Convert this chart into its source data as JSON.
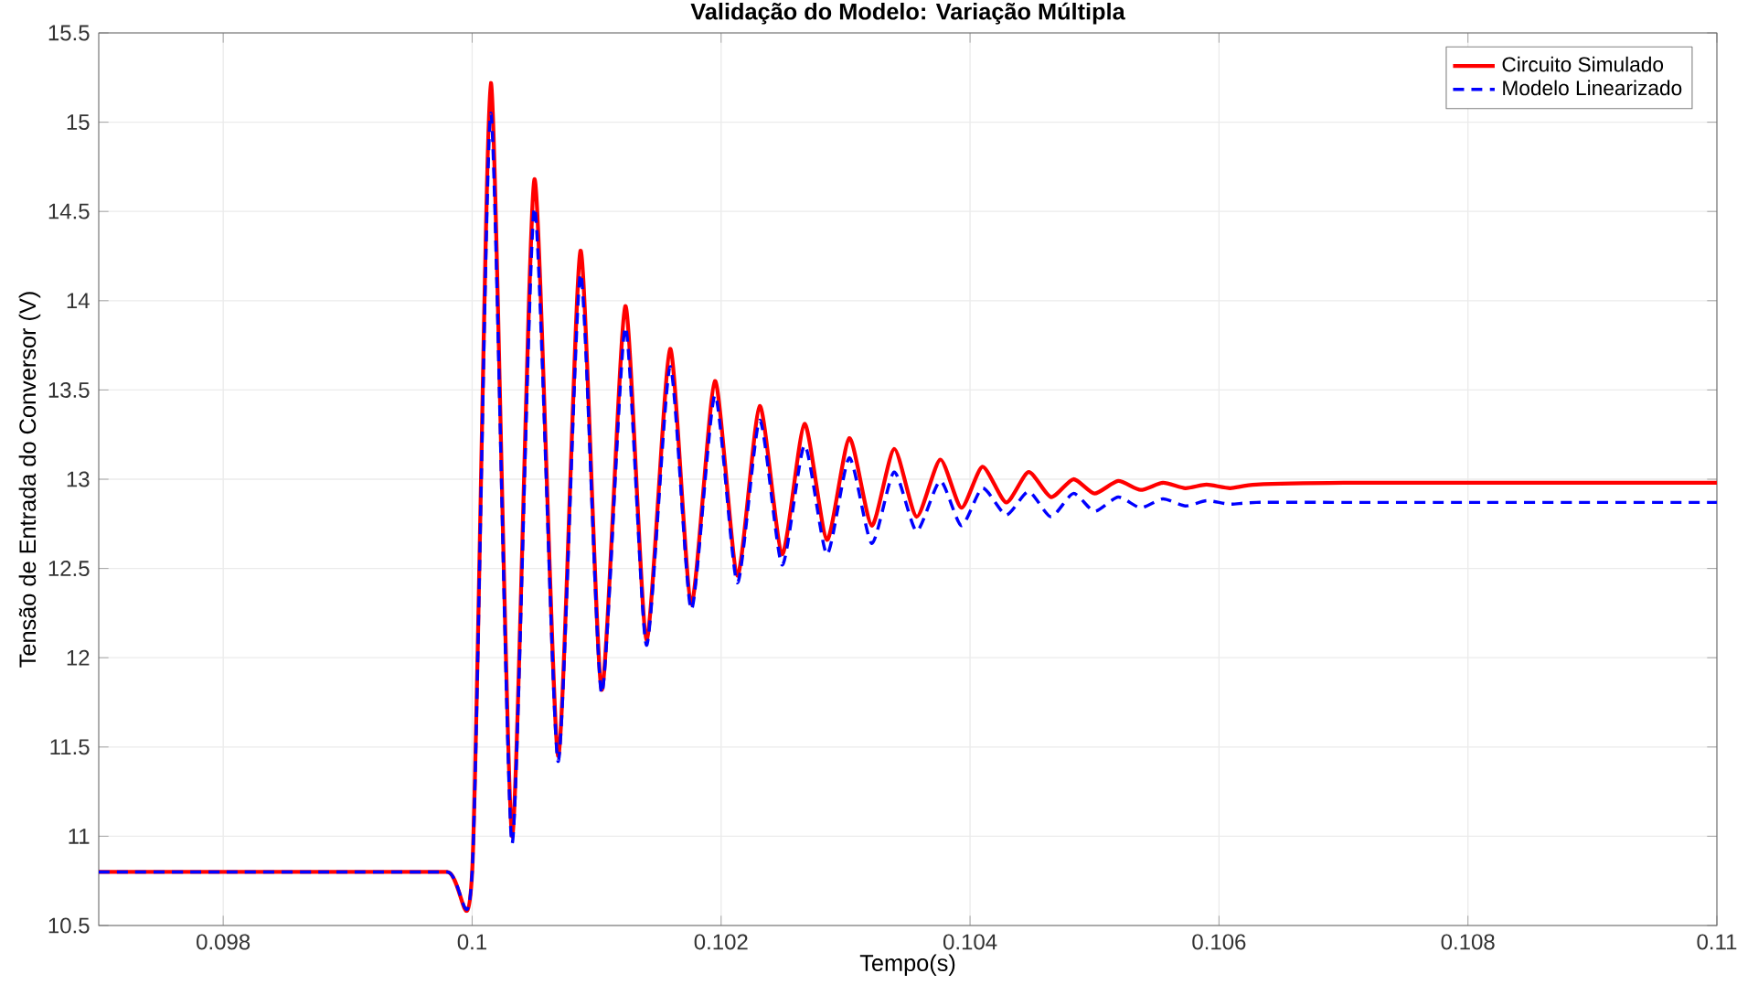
{
  "chart_data": {
    "type": "line",
    "title": "Validação do Modelo: Variação Múltipla",
    "xlabel": "Tempo(s)",
    "ylabel": "Tensão de Entrada do Conversor (V)",
    "x": [
      0.097,
      0.098,
      0.099,
      0.0998,
      0.1,
      0.10015,
      0.10032,
      0.1005,
      0.10069,
      0.10087,
      0.10104,
      0.10123,
      0.1014,
      0.10159,
      0.10176,
      0.10195,
      0.10213,
      0.10231,
      0.10249,
      0.10267,
      0.10285,
      0.10303,
      0.10321,
      0.10339,
      0.10357,
      0.10376,
      0.10393,
      0.1041,
      0.10429,
      0.10447,
      0.10465,
      0.10483,
      0.105,
      0.10519,
      0.10537,
      0.10555,
      0.10573,
      0.1059,
      0.10609,
      0.1063,
      0.107,
      0.108,
      0.109,
      0.11
    ],
    "series": [
      {
        "name": "Circuito Simulado",
        "color": "#ff0000",
        "line_style": "solid",
        "values": [
          10.8,
          10.8,
          10.8,
          10.8,
          10.8,
          15.22,
          11.0,
          14.68,
          11.45,
          14.28,
          11.82,
          13.97,
          12.1,
          13.73,
          12.3,
          13.55,
          12.46,
          13.41,
          12.58,
          13.31,
          12.66,
          13.23,
          12.74,
          13.17,
          12.79,
          13.11,
          12.84,
          13.07,
          12.87,
          13.04,
          12.9,
          13.0,
          12.92,
          12.99,
          12.94,
          12.98,
          12.95,
          12.97,
          12.95,
          12.97,
          12.98,
          12.98,
          12.98,
          12.98
        ]
      },
      {
        "name": "Modelo Linearizado",
        "color": "#0000ff",
        "line_style": "dashed",
        "values": [
          10.8,
          10.8,
          10.8,
          10.8,
          10.8,
          15.05,
          10.96,
          14.52,
          11.42,
          14.15,
          11.8,
          13.85,
          12.07,
          13.63,
          12.27,
          13.47,
          12.42,
          13.33,
          12.52,
          13.19,
          12.58,
          13.12,
          12.64,
          13.04,
          12.71,
          12.99,
          12.74,
          12.95,
          12.8,
          12.93,
          12.79,
          12.92,
          12.82,
          12.9,
          12.84,
          12.89,
          12.85,
          12.88,
          12.86,
          12.87,
          12.87,
          12.87,
          12.87,
          12.87
        ]
      }
    ],
    "xlim": [
      0.097,
      0.11
    ],
    "xticks": [
      0.098,
      0.1,
      0.102,
      0.104,
      0.106,
      0.108,
      0.11
    ],
    "ylim": [
      10.5,
      15.5
    ],
    "yticks": [
      10.5,
      11,
      11.5,
      12,
      12.5,
      13,
      13.5,
      14,
      14.5,
      15,
      15.5
    ],
    "grid": true,
    "legend": "top right",
    "marker": "none"
  }
}
